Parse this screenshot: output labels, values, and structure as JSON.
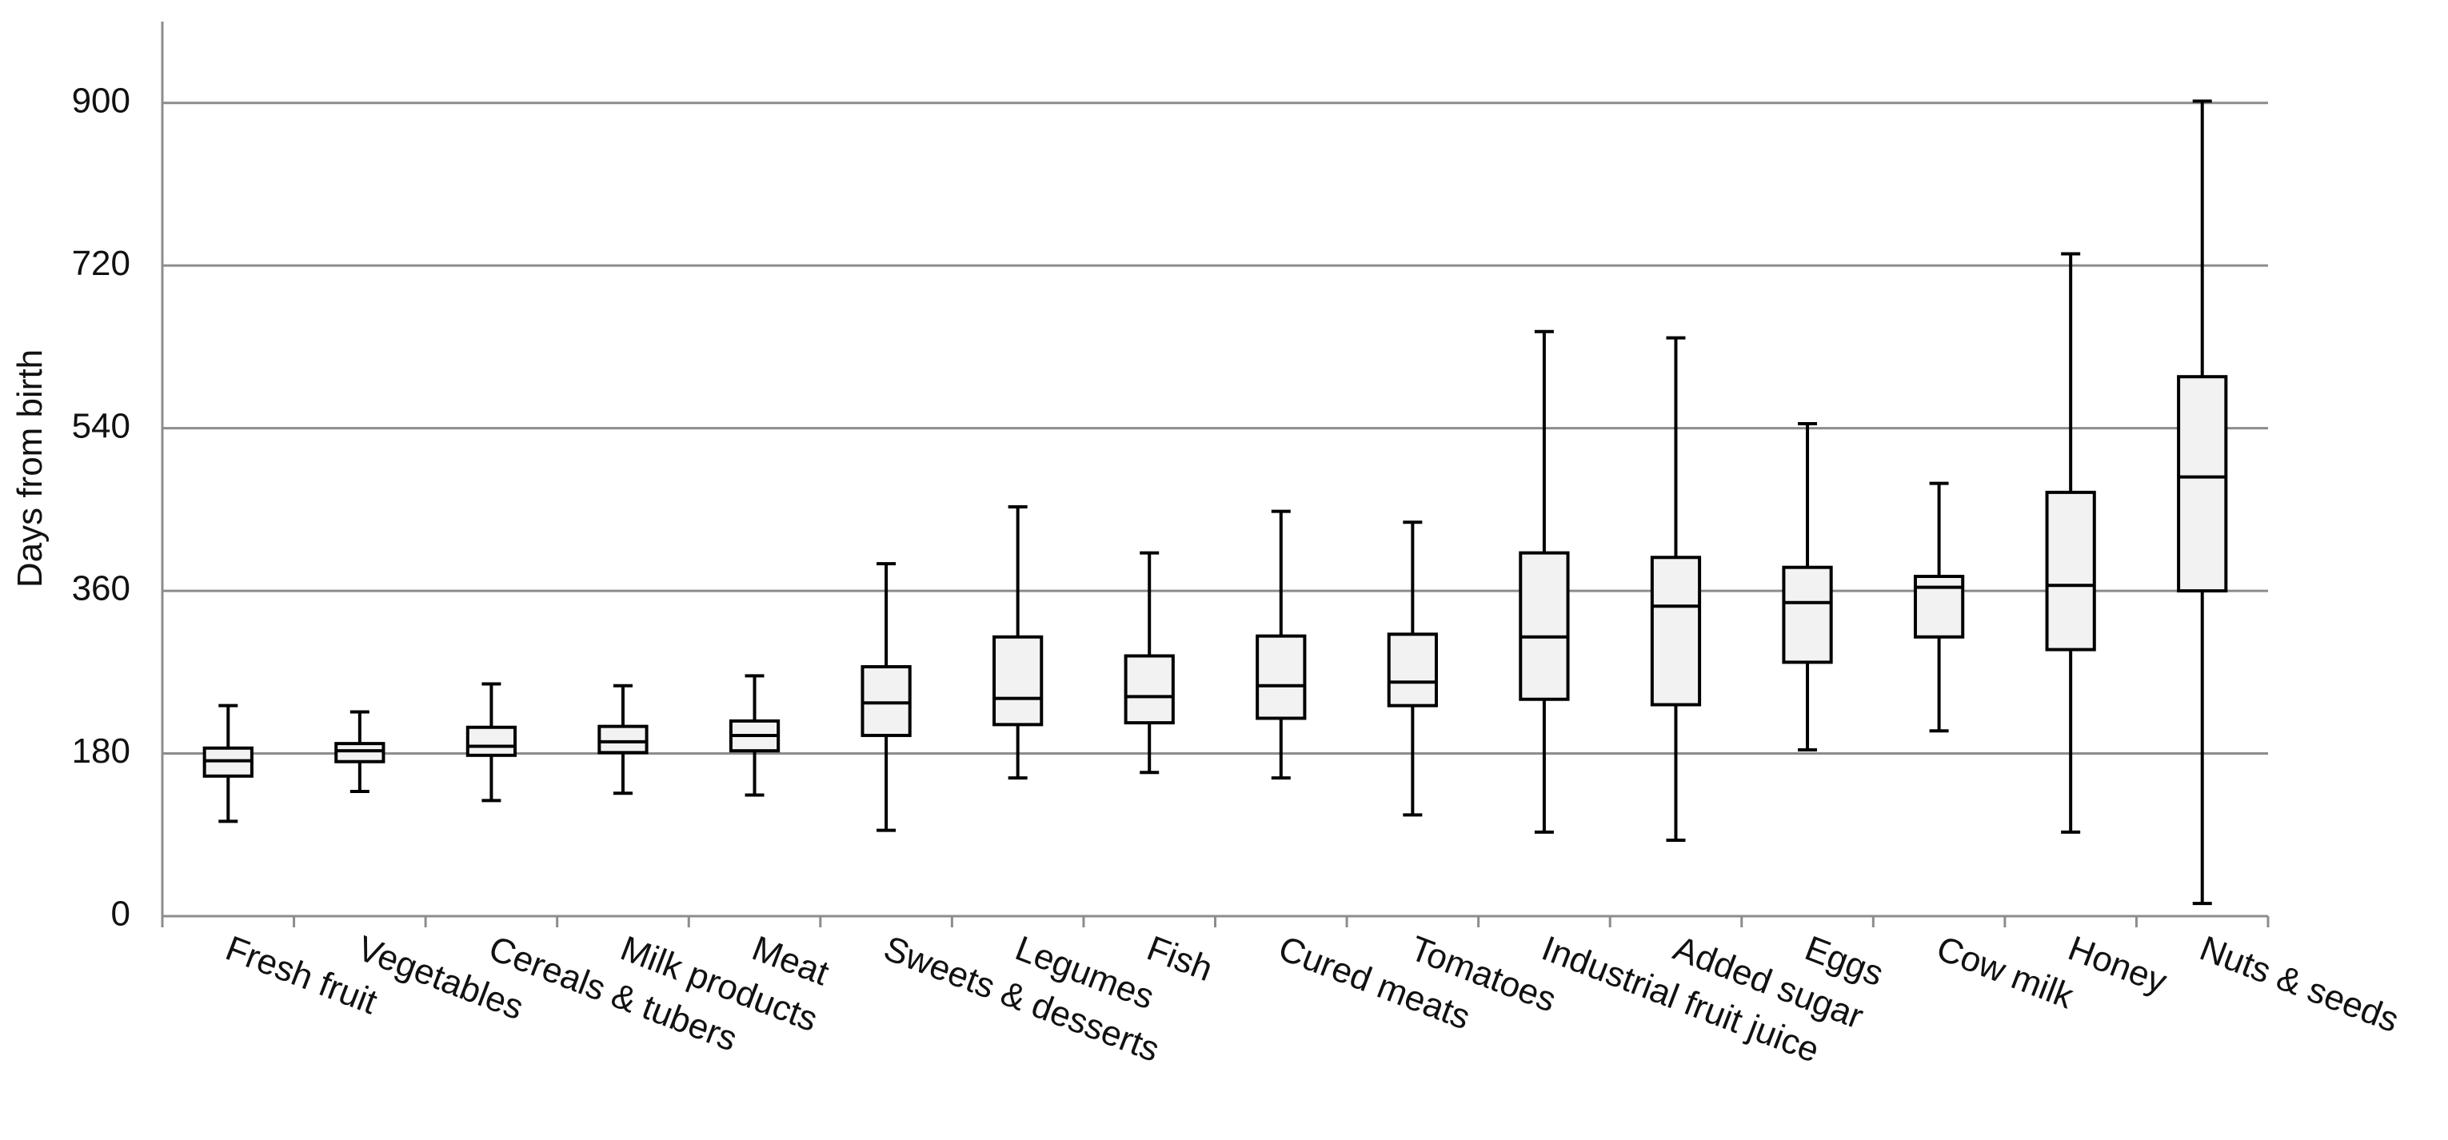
{
  "chart_data": {
    "type": "box",
    "y_label": "Days from birth",
    "categories": [
      "Fresh fruit",
      "Vegetables",
      "Cereals & tubers",
      "Milk products",
      "Meat",
      "Sweets & desserts",
      "Legumes",
      "Fish",
      "Cured meats",
      "Tomatoes",
      "Industrial fruit juice",
      "Added sugar",
      "Eggs",
      "Cow milk",
      "Honey",
      "Nuts & seeds"
    ],
    "min": [
      105,
      138,
      128,
      136,
      134,
      95,
      153,
      159,
      153,
      112,
      93,
      84,
      184,
      205,
      93,
      14
    ],
    "q1": [
      155,
      171,
      178,
      181,
      183,
      200,
      212,
      214,
      219,
      233,
      240,
      234,
      281,
      309,
      295,
      360
    ],
    "median": [
      172,
      183,
      188,
      193,
      200,
      236,
      241,
      243,
      255,
      259,
      309,
      343,
      347,
      364,
      366,
      486
    ],
    "q3": [
      186,
      191,
      209,
      210,
      216,
      276,
      309,
      288,
      310,
      312,
      402,
      397,
      386,
      376,
      469,
      597
    ],
    "max": [
      233,
      226,
      257,
      255,
      266,
      390,
      453,
      402,
      448,
      436,
      647,
      640,
      545,
      479,
      733,
      902
    ],
    "color": "#f2f2f2",
    "ylim": [
      0,
      990
    ],
    "yticks": [
      0,
      180,
      360,
      540,
      720,
      900
    ],
    "grid": true
  }
}
